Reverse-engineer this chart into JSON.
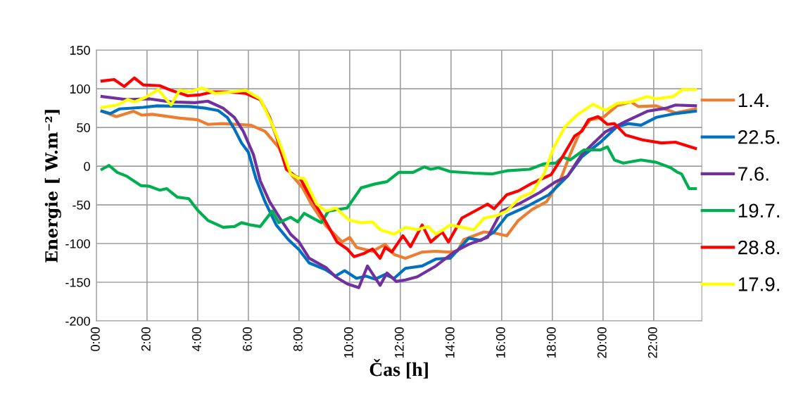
{
  "chart_data": {
    "type": "line",
    "xlabel": "Čas [h]",
    "ylabel": "Energie [ W.m⁻²]",
    "xlim": [
      0,
      23.9
    ],
    "ylim": [
      -200,
      150
    ],
    "yticks": [
      -200,
      -150,
      -100,
      -50,
      0,
      50,
      100,
      150
    ],
    "xticks": [
      {
        "value": 0,
        "label": "0:00"
      },
      {
        "value": 2,
        "label": "2:00"
      },
      {
        "value": 4,
        "label": "4:00"
      },
      {
        "value": 6,
        "label": "6:00"
      },
      {
        "value": 8,
        "label": "8:00"
      },
      {
        "value": 10,
        "label": "10:00"
      },
      {
        "value": 12,
        "label": "12:00"
      },
      {
        "value": 14,
        "label": "14:00"
      },
      {
        "value": 16,
        "label": "16:00"
      },
      {
        "value": 18,
        "label": "18:00"
      },
      {
        "value": 20,
        "label": "20:00"
      },
      {
        "value": 22,
        "label": "22:00"
      }
    ],
    "grid": true,
    "legend": "right",
    "marker": "none",
    "line_style": "solid",
    "series": [
      {
        "name": "1.4.",
        "color": "#ed7d31",
        "x": [
          0.22,
          0.79,
          1.47,
          1.8,
          2.2,
          3.3,
          4.0,
          4.4,
          4.97,
          6.1,
          6.66,
          7.2,
          7.67,
          8.14,
          8.5,
          9.06,
          9.7,
          10.0,
          10.27,
          10.9,
          11.4,
          11.75,
          12.2,
          12.86,
          13.4,
          13.9,
          14.25,
          14.5,
          15.3,
          15.8,
          16.2,
          16.66,
          17.2,
          17.77,
          18.3,
          18.7,
          19.06,
          19.5,
          20.0,
          20.55,
          21.1,
          21.4,
          22.1,
          22.86,
          23.65
        ],
        "values": [
          71,
          64,
          71,
          66,
          67,
          62,
          60,
          54,
          55,
          53,
          45,
          24,
          -10,
          -28,
          -50,
          -77,
          -98,
          -92,
          -105,
          -110,
          -101,
          -114,
          -119,
          -111,
          -110,
          -111,
          -110,
          -95,
          -85,
          -87,
          -90,
          -70,
          -56,
          -46,
          -19,
          15,
          42,
          60,
          63,
          78,
          83,
          77,
          78,
          69,
          74
        ]
      },
      {
        "name": "22.5.",
        "color": "#0070c0",
        "x": [
          0.22,
          0.55,
          0.92,
          1.85,
          2.4,
          3.7,
          4.3,
          4.8,
          5.17,
          5.45,
          5.73,
          6.0,
          6.3,
          6.66,
          7.1,
          7.58,
          8.0,
          8.4,
          9.06,
          9.44,
          9.8,
          10.27,
          10.64,
          11.0,
          11.4,
          11.75,
          12.2,
          12.86,
          13.4,
          13.97,
          14.7,
          15.17,
          15.7,
          16.2,
          17.0,
          17.86,
          18.6,
          19.16,
          19.9,
          20.55,
          21.0,
          21.5,
          22.1,
          22.86,
          23.65
        ],
        "values": [
          71,
          68,
          74,
          76,
          78,
          77,
          75,
          72,
          63,
          48,
          30,
          18,
          -16,
          -46,
          -76,
          -95,
          -108,
          -125,
          -134,
          -142,
          -135,
          -145,
          -142,
          -146,
          -140,
          -145,
          -132,
          -129,
          -120,
          -119,
          -93,
          -96,
          -85,
          -64,
          -52,
          -37,
          -13,
          12,
          31,
          51,
          55,
          53,
          63,
          68,
          71
        ]
      },
      {
        "name": "7.6.",
        "color": "#7030a0",
        "x": [
          0.22,
          1.2,
          2.1,
          2.95,
          3.9,
          4.4,
          5.0,
          5.45,
          5.8,
          6.2,
          6.47,
          6.84,
          7.3,
          7.67,
          8.0,
          8.4,
          9.06,
          9.44,
          9.9,
          10.36,
          10.7,
          11.2,
          11.47,
          11.84,
          12.2,
          12.67,
          13.4,
          14.16,
          14.7,
          15.44,
          16.0,
          16.66,
          17.5,
          18.14,
          18.6,
          19.16,
          20.08,
          20.9,
          21.75,
          22.5,
          22.86,
          23.65
        ],
        "values": [
          90,
          86,
          87,
          83,
          82,
          84,
          75,
          63,
          45,
          15,
          -19,
          -46,
          -70,
          -88,
          -98,
          -119,
          -131,
          -143,
          -152,
          -157,
          -129,
          -154,
          -138,
          -149,
          -147,
          -143,
          -129,
          -110,
          -101,
          -92,
          -58,
          -49,
          -34,
          -20,
          -13,
          15,
          44,
          58,
          71,
          75,
          79,
          78
        ]
      },
      {
        "name": "19.7.",
        "color": "#00b050",
        "x": [
          0.22,
          0.5,
          0.82,
          1.2,
          1.75,
          2.1,
          2.5,
          2.77,
          3.2,
          3.65,
          4.0,
          4.4,
          5.0,
          5.45,
          5.73,
          6.1,
          6.47,
          6.94,
          7.2,
          7.67,
          7.95,
          8.2,
          8.88,
          9.16,
          9.9,
          10.45,
          11.0,
          11.47,
          11.94,
          12.5,
          12.95,
          13.2,
          13.5,
          13.97,
          14.9,
          15.64,
          16.2,
          17.1,
          17.67,
          18.14,
          18.4,
          18.7,
          19.25,
          19.9,
          20.17,
          20.45,
          20.8,
          21.5,
          22.1,
          22.67,
          22.95,
          23.1,
          23.4,
          23.65
        ],
        "values": [
          -4,
          1,
          -8,
          -13,
          -25,
          -26,
          -31,
          -29,
          -40,
          -42,
          -57,
          -70,
          -79,
          -78,
          -73,
          -76,
          -78,
          -58,
          -73,
          -66,
          -72,
          -61,
          -73,
          -58,
          -54,
          -28,
          -23,
          -20,
          -8,
          -8,
          -1,
          -4,
          -2,
          -7,
          -9,
          -10,
          -6,
          -4,
          3,
          4,
          12,
          8,
          21,
          21,
          25,
          8,
          4,
          8,
          5,
          -2,
          -8,
          -10,
          -29,
          -29
        ]
      },
      {
        "name": "28.8.",
        "color": "#ff0000",
        "x": [
          0.22,
          0.7,
          1.1,
          1.5,
          1.85,
          2.5,
          2.95,
          3.6,
          4.06,
          4.6,
          5.17,
          5.9,
          6.47,
          6.84,
          7.1,
          7.5,
          7.86,
          8.05,
          8.4,
          8.97,
          9.5,
          9.9,
          10.17,
          10.55,
          10.9,
          11.2,
          11.4,
          11.66,
          12.1,
          12.4,
          12.86,
          13.2,
          13.65,
          13.9,
          14.43,
          15.0,
          15.44,
          15.7,
          16.2,
          16.66,
          17.2,
          17.95,
          18.4,
          18.88,
          19.16,
          19.43,
          19.8,
          20.17,
          20.45,
          20.9,
          21.56,
          22.3,
          22.86,
          23.65
        ],
        "values": [
          110,
          112,
          103,
          114,
          105,
          104,
          98,
          91,
          92,
          96,
          96,
          94,
          86,
          63,
          39,
          -4,
          -13,
          -16,
          -37,
          -67,
          -98,
          -107,
          -117,
          -113,
          -107,
          -119,
          -105,
          -111,
          -90,
          -104,
          -76,
          -98,
          -85,
          -98,
          -67,
          -57,
          -49,
          -55,
          -37,
          -32,
          -22,
          -11,
          12,
          39,
          45,
          60,
          64,
          54,
          55,
          40,
          34,
          30,
          31,
          23
        ]
      },
      {
        "name": "17.9.",
        "color": "#ffff00",
        "x": [
          0.22,
          0.82,
          1.24,
          1.5,
          1.94,
          2.44,
          2.95,
          3.28,
          3.7,
          4.16,
          4.7,
          5.36,
          5.9,
          6.47,
          6.94,
          7.3,
          7.67,
          7.95,
          8.2,
          8.7,
          9.06,
          9.44,
          10.0,
          10.45,
          10.9,
          11.2,
          11.75,
          12.2,
          12.67,
          13.1,
          13.4,
          13.97,
          14.9,
          15.3,
          15.8,
          16.2,
          16.75,
          17.2,
          17.67,
          18.05,
          18.5,
          18.97,
          19.6,
          20.1,
          20.55,
          21.1,
          21.75,
          22.1,
          22.77,
          23.14,
          23.65
        ],
        "values": [
          76,
          79,
          86,
          83,
          89,
          99,
          79,
          98,
          96,
          101,
          94,
          96,
          98,
          87,
          54,
          24,
          -10,
          -15,
          -16,
          -49,
          -58,
          -54,
          -70,
          -73,
          -72,
          -82,
          -88,
          -79,
          -82,
          -78,
          -88,
          -76,
          -82,
          -67,
          -64,
          -58,
          -40,
          -34,
          -10,
          24,
          51,
          66,
          80,
          72,
          81,
          83,
          90,
          87,
          90,
          99,
          99
        ]
      }
    ]
  }
}
